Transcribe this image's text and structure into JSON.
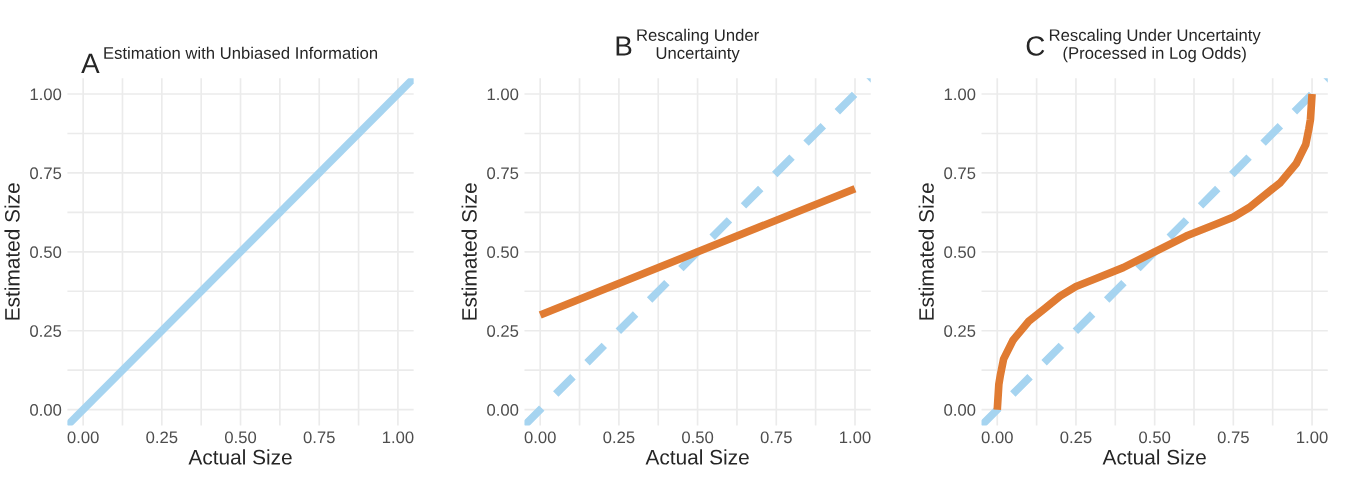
{
  "chart_data": [
    {
      "type": "line",
      "title": "Estimation with Unbiased Information",
      "annotations": [
        "A"
      ],
      "xlabel": "Actual Size",
      "ylabel": "Estimated Size",
      "xlim": [
        -0.05,
        1.05
      ],
      "ylim": [
        -0.05,
        1.05
      ],
      "xticks": [
        {
          "value": 0,
          "label": "0.00"
        },
        {
          "value": 0.125,
          "label": null
        },
        {
          "value": 0.25,
          "label": "0.25"
        },
        {
          "value": 0.375,
          "label": null
        },
        {
          "value": 0.5,
          "label": "0.50"
        },
        {
          "value": 0.625,
          "label": null
        },
        {
          "value": 0.75,
          "label": "0.75"
        },
        {
          "value": 0.875,
          "label": null
        },
        {
          "value": 1,
          "label": "1.00"
        }
      ],
      "yticks": [
        {
          "value": 0,
          "label": "0.00"
        },
        {
          "value": 0.125,
          "label": null
        },
        {
          "value": 0.25,
          "label": "0.25"
        },
        {
          "value": 0.375,
          "label": null
        },
        {
          "value": 0.5,
          "label": "0.50"
        },
        {
          "value": 0.625,
          "label": null
        },
        {
          "value": 0.75,
          "label": "0.75"
        },
        {
          "value": 0.875,
          "label": null
        },
        {
          "value": 1,
          "label": "1.00"
        }
      ],
      "grid": true,
      "series": [
        {
          "color": "#a6d4f0",
          "line_style": "solid",
          "x": [
            -0.05,
            1.05
          ],
          "values": [
            -0.05,
            1.05
          ]
        }
      ]
    },
    {
      "type": "line",
      "title": "Rescaling Under\nUncertainty",
      "annotations": [
        "B"
      ],
      "xlabel": "Actual Size",
      "ylabel": "Estimated Size",
      "xlim": [
        -0.05,
        1.05
      ],
      "ylim": [
        -0.05,
        1.05
      ],
      "xticks": [
        {
          "value": 0,
          "label": "0.00"
        },
        {
          "value": 0.125,
          "label": null
        },
        {
          "value": 0.25,
          "label": "0.25"
        },
        {
          "value": 0.375,
          "label": null
        },
        {
          "value": 0.5,
          "label": "0.50"
        },
        {
          "value": 0.625,
          "label": null
        },
        {
          "value": 0.75,
          "label": "0.75"
        },
        {
          "value": 0.875,
          "label": null
        },
        {
          "value": 1,
          "label": "1.00"
        }
      ],
      "yticks": [
        {
          "value": 0,
          "label": "0.00"
        },
        {
          "value": 0.125,
          "label": null
        },
        {
          "value": 0.25,
          "label": "0.25"
        },
        {
          "value": 0.375,
          "label": null
        },
        {
          "value": 0.5,
          "label": "0.50"
        },
        {
          "value": 0.625,
          "label": null
        },
        {
          "value": 0.75,
          "label": "0.75"
        },
        {
          "value": 0.875,
          "label": null
        },
        {
          "value": 1,
          "label": "1.00"
        }
      ],
      "grid": true,
      "series": [
        {
          "color": "#a6d4f0",
          "line_style": "dashed",
          "x": [
            -0.05,
            1.05
          ],
          "values": [
            -0.05,
            1.05
          ]
        },
        {
          "color": "#e07b32",
          "line_style": "solid",
          "x": [
            0,
            1
          ],
          "values": [
            0.3,
            0.7
          ]
        }
      ]
    },
    {
      "type": "line",
      "title": "Rescaling Under Uncertainty\n(Processed in Log Odds)",
      "annotations": [
        "C"
      ],
      "xlabel": "Actual Size",
      "ylabel": "Estimated Size",
      "xlim": [
        -0.05,
        1.05
      ],
      "ylim": [
        -0.05,
        1.05
      ],
      "xticks": [
        {
          "value": 0,
          "label": "0.00"
        },
        {
          "value": 0.125,
          "label": null
        },
        {
          "value": 0.25,
          "label": "0.25"
        },
        {
          "value": 0.375,
          "label": null
        },
        {
          "value": 0.5,
          "label": "0.50"
        },
        {
          "value": 0.625,
          "label": null
        },
        {
          "value": 0.75,
          "label": "0.75"
        },
        {
          "value": 0.875,
          "label": null
        },
        {
          "value": 1,
          "label": "1.00"
        }
      ],
      "yticks": [
        {
          "value": 0,
          "label": "0.00"
        },
        {
          "value": 0.125,
          "label": null
        },
        {
          "value": 0.25,
          "label": "0.25"
        },
        {
          "value": 0.375,
          "label": null
        },
        {
          "value": 0.5,
          "label": "0.50"
        },
        {
          "value": 0.625,
          "label": null
        },
        {
          "value": 0.75,
          "label": "0.75"
        },
        {
          "value": 0.875,
          "label": null
        },
        {
          "value": 1,
          "label": "1.00"
        }
      ],
      "grid": true,
      "series": [
        {
          "color": "#a6d4f0",
          "line_style": "dashed",
          "x": [
            -0.05,
            1.05
          ],
          "values": [
            -0.05,
            1.05
          ]
        },
        {
          "color": "#e07b32",
          "line_style": "solid",
          "x": [
            0,
            0.005,
            0.01,
            0.02,
            0.05,
            0.1,
            0.15,
            0.2,
            0.25,
            0.3,
            0.4,
            0.5,
            0.6,
            0.7,
            0.75,
            0.8,
            0.85,
            0.9,
            0.95,
            0.98,
            0.99,
            0.995,
            1
          ],
          "values": [
            0,
            0.08,
            0.11,
            0.16,
            0.22,
            0.28,
            0.32,
            0.36,
            0.39,
            0.41,
            0.45,
            0.5,
            0.55,
            0.59,
            0.61,
            0.64,
            0.68,
            0.72,
            0.78,
            0.84,
            0.89,
            0.92,
            1
          ]
        }
      ]
    }
  ]
}
